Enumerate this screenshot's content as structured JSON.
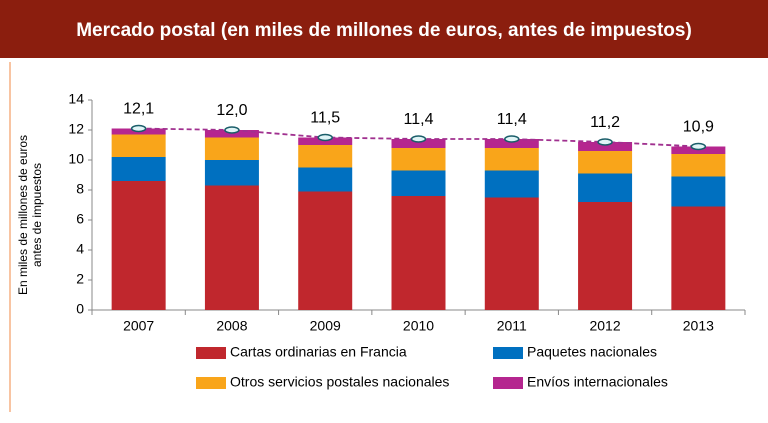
{
  "chart_data": {
    "type": "stacked_bar",
    "title": "Mercado postal (en miles de millones de euros, antes de impuestos)",
    "ylabel": [
      "En miles de millones de euros",
      "antes de impuestos"
    ],
    "categories": [
      "2007",
      "2008",
      "2009",
      "2010",
      "2011",
      "2012",
      "2013"
    ],
    "series": [
      {
        "name": "Cartas ordinarias en Francia",
        "color": "#c0272d",
        "values": [
          8.6,
          8.3,
          7.9,
          7.6,
          7.5,
          7.2,
          6.9
        ]
      },
      {
        "name": "Paquetes nacionales",
        "color": "#0070c0",
        "values": [
          1.6,
          1.7,
          1.6,
          1.7,
          1.8,
          1.9,
          2.0
        ]
      },
      {
        "name": "Otros servicios postales nacionales",
        "color": "#f9a51a",
        "values": [
          1.5,
          1.5,
          1.5,
          1.5,
          1.5,
          1.5,
          1.5
        ]
      },
      {
        "name": "Envíos internacionales",
        "color": "#b5268f",
        "values": [
          0.4,
          0.5,
          0.5,
          0.6,
          0.6,
          0.6,
          0.5
        ]
      }
    ],
    "totals": {
      "color": "#a0308f",
      "values": [
        12.1,
        12.0,
        11.5,
        11.4,
        11.4,
        11.2,
        10.9
      ],
      "value_labels": [
        "12,1",
        "12,0",
        "11,5",
        "11,4",
        "11,4",
        "11,2",
        "10,9"
      ]
    },
    "ylim": [
      0,
      14
    ],
    "yticks": [
      0,
      2,
      4,
      6,
      8,
      10,
      12,
      14
    ]
  }
}
